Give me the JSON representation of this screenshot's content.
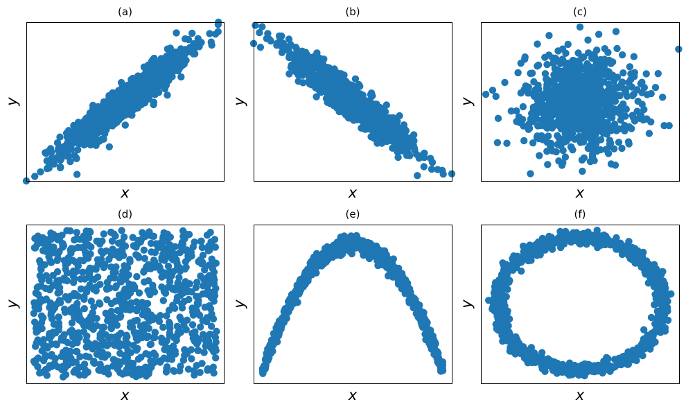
{
  "colors": {
    "marker": "#1f77b4",
    "frame": "#000000",
    "background": "#ffffff"
  },
  "chart_data": [
    {
      "type": "scatter",
      "title": "(a)",
      "xlabel": "x",
      "ylabel": "y",
      "ticks": "none",
      "grid": false,
      "pattern": "positive-correlation",
      "xlim": [
        -3.5,
        3.5
      ],
      "ylim": [
        -3.5,
        3.5
      ],
      "n_points": 900,
      "points": [
        [
          -3.2,
          -3.3
        ],
        [
          -3.0,
          -3.1
        ],
        [
          -2.6,
          -2.5
        ],
        [
          -2.2,
          -2.0
        ],
        [
          -2.0,
          -2.4
        ],
        [
          -1.5,
          -1.6
        ],
        [
          -1.0,
          -0.8
        ],
        [
          -0.5,
          -0.6
        ],
        [
          0.0,
          0.0
        ],
        [
          0.5,
          0.6
        ],
        [
          1.0,
          0.9
        ],
        [
          1.5,
          1.6
        ],
        [
          2.0,
          2.1
        ],
        [
          2.5,
          2.4
        ],
        [
          3.0,
          3.0
        ],
        [
          3.3,
          3.4
        ]
      ]
    },
    {
      "type": "scatter",
      "title": "(b)",
      "xlabel": "x",
      "ylabel": "y",
      "ticks": "none",
      "grid": false,
      "pattern": "negative-correlation",
      "xlim": [
        -3.5,
        3.5
      ],
      "ylim": [
        -3.5,
        3.5
      ],
      "n_points": 900,
      "points": [
        [
          -3.2,
          3.3
        ],
        [
          -3.0,
          3.0
        ],
        [
          -2.5,
          2.6
        ],
        [
          -2.0,
          2.1
        ],
        [
          -1.5,
          1.4
        ],
        [
          -1.0,
          1.0
        ],
        [
          -0.5,
          0.5
        ],
        [
          0.0,
          0.0
        ],
        [
          0.5,
          -0.5
        ],
        [
          1.0,
          -1.1
        ],
        [
          1.5,
          -1.5
        ],
        [
          2.0,
          -2.0
        ],
        [
          2.5,
          -2.4
        ],
        [
          3.0,
          -3.0
        ],
        [
          3.2,
          -3.2
        ]
      ]
    },
    {
      "type": "scatter",
      "title": "(c)",
      "xlabel": "x",
      "ylabel": "y",
      "ticks": "none",
      "grid": false,
      "pattern": "no-correlation-gaussian-blob",
      "xlim": [
        -4,
        4
      ],
      "ylim": [
        -3.3,
        3.3
      ],
      "n_points": 900,
      "points": [
        [
          -3.8,
          0.3
        ],
        [
          -3.3,
          -0.7
        ],
        [
          -2.5,
          1.2
        ],
        [
          -1.5,
          -1.5
        ],
        [
          -1.0,
          1.8
        ],
        [
          0.0,
          0.0
        ],
        [
          0.5,
          -2.0
        ],
        [
          1.0,
          2.2
        ],
        [
          1.8,
          -1.2
        ],
        [
          2.5,
          0.8
        ],
        [
          3.4,
          -1.0
        ],
        [
          3.6,
          -1.0
        ],
        [
          -2.0,
          -3.0
        ],
        [
          0.0,
          3.1
        ]
      ]
    },
    {
      "type": "scatter",
      "title": "(d)",
      "xlabel": "x",
      "ylabel": "y",
      "ticks": "none",
      "grid": false,
      "pattern": "uniform-random",
      "xlim": [
        -0.04,
        1.04
      ],
      "ylim": [
        -0.04,
        1.04
      ],
      "n_points": 900,
      "points": [
        [
          0.05,
          0.95
        ],
        [
          0.2,
          0.1
        ],
        [
          0.4,
          0.6
        ],
        [
          0.6,
          0.3
        ],
        [
          0.8,
          0.85
        ],
        [
          0.95,
          0.05
        ],
        [
          0.5,
          0.5
        ],
        [
          0.1,
          0.4
        ],
        [
          0.9,
          0.5
        ],
        [
          0.3,
          0.9
        ]
      ]
    },
    {
      "type": "scatter",
      "title": "(e)",
      "xlabel": "x",
      "ylabel": "y",
      "ticks": "none",
      "grid": false,
      "pattern": "inverted-parabola",
      "xlim": [
        -1.1,
        1.1
      ],
      "ylim": [
        -1.1,
        0.15
      ],
      "n_points": 900,
      "points": [
        [
          -1.0,
          -1.0
        ],
        [
          -0.75,
          -0.56
        ],
        [
          -0.5,
          -0.25
        ],
        [
          -0.25,
          -0.06
        ],
        [
          0.0,
          0.0
        ],
        [
          0.25,
          -0.06
        ],
        [
          0.5,
          -0.25
        ],
        [
          0.75,
          -0.56
        ],
        [
          1.0,
          -1.0
        ]
      ]
    },
    {
      "type": "scatter",
      "title": "(f)",
      "xlabel": "x",
      "ylabel": "y",
      "ticks": "none",
      "grid": false,
      "pattern": "ring",
      "xlim": [
        -1.2,
        1.2
      ],
      "ylim": [
        -1.2,
        1.2
      ],
      "n_points": 900,
      "points": [
        [
          1.0,
          0.0
        ],
        [
          0.71,
          0.71
        ],
        [
          0.0,
          1.0
        ],
        [
          -0.71,
          0.71
        ],
        [
          -1.0,
          0.0
        ],
        [
          -0.71,
          -0.71
        ],
        [
          0.0,
          -1.0
        ],
        [
          0.71,
          -0.71
        ]
      ]
    }
  ]
}
